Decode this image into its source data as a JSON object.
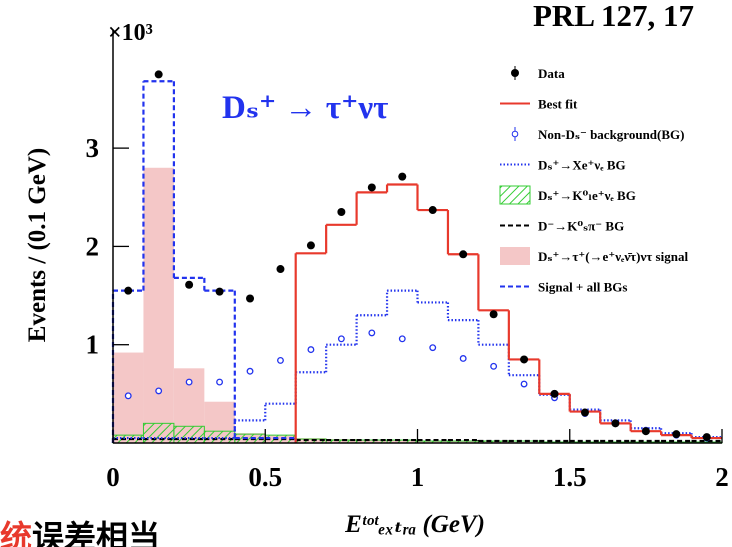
{
  "chart_data": {
    "type": "histogram",
    "title": "PRL 127, 17",
    "annotation": "Dₛ⁺ → τ⁺ντ",
    "y_multiplier": "×10³",
    "xlabel": "Eᵗᵒᵗₑₓₜᵣₐ (GeV)",
    "ylabel": "Events / (0.1 GeV)",
    "caption": [
      "统",
      "误差相当"
    ],
    "xlim": [
      0,
      2
    ],
    "ylim": [
      0,
      4.1
    ],
    "xticks": [
      0,
      0.5,
      1,
      1.5,
      2
    ],
    "yticks": [
      1,
      2,
      3
    ],
    "bins": [
      0,
      0.1,
      0.2,
      0.3,
      0.4,
      0.5,
      0.6,
      0.7,
      0.8,
      0.9,
      1.0,
      1.1,
      1.2,
      1.3,
      1.4,
      1.5,
      1.6,
      1.7,
      1.8,
      1.9,
      2.0
    ],
    "series": [
      {
        "name": "Dₛ⁺→τ⁺(→e⁺νₑν̄τ)ντ signal",
        "style": "filled",
        "color": "#f4c7c7",
        "values": [
          0.92,
          2.8,
          0.76,
          0.42,
          0.1,
          0.08,
          0.05,
          0.04,
          0.03,
          0.03,
          0.02,
          0.02,
          0.02,
          0.01,
          0.01,
          0.01,
          0.01,
          0.01,
          0.01,
          0.01
        ]
      },
      {
        "name": "Dₛ⁺→K⁰ₗe⁺νₑ BG",
        "style": "hatched",
        "color": "#33cc33",
        "values": [
          0.08,
          0.2,
          0.17,
          0.12,
          0.09,
          0.08,
          0.04,
          0.03,
          0.03,
          0.03,
          0.02,
          0.02,
          0.02,
          0.02,
          0.01,
          0.01,
          0.01,
          0.01,
          0.01,
          0.01
        ]
      },
      {
        "name": "D⁻→K⁰ₛπ⁻ BG",
        "style": "dashed",
        "color": "#000000",
        "values": [
          0.04,
          0.04,
          0.04,
          0.04,
          0.04,
          0.04,
          0.03,
          0.03,
          0.03,
          0.03,
          0.03,
          0.03,
          0.02,
          0.02,
          0.02,
          0.02,
          0.02,
          0.02,
          0.02,
          0.02
        ]
      },
      {
        "name": "Dₛ⁺→Xe⁺νₑ BG",
        "style": "dotted",
        "color": "#2233ee",
        "values": [
          0.05,
          0.05,
          0.05,
          0.05,
          0.23,
          0.4,
          0.72,
          1.0,
          1.3,
          1.55,
          1.43,
          1.25,
          1.0,
          0.69,
          0.49,
          0.34,
          0.23,
          0.15,
          0.1,
          0.06
        ]
      },
      {
        "name": "Signal + all BGs",
        "style": "dashed",
        "color": "#2233ee",
        "values": [
          1.55,
          3.68,
          1.68,
          1.55,
          0.05,
          0.05,
          null,
          null,
          null,
          null,
          null,
          null,
          null,
          null,
          null,
          null,
          null,
          null,
          null,
          null
        ]
      },
      {
        "name": "Best fit",
        "style": "step",
        "color": "#e8392c",
        "values": [
          null,
          null,
          null,
          null,
          null,
          null,
          1.93,
          2.22,
          2.55,
          2.63,
          2.37,
          1.92,
          1.35,
          0.85,
          0.5,
          0.32,
          0.2,
          0.12,
          0.08,
          0.05
        ]
      },
      {
        "name": "Non-Dₛ⁻ background(BG)",
        "style": "open-points",
        "color": "#2233ee",
        "values": [
          0.48,
          0.53,
          0.62,
          0.62,
          0.73,
          0.84,
          0.95,
          1.06,
          1.12,
          1.06,
          0.97,
          0.86,
          0.78,
          0.6,
          0.46,
          0.3,
          0.2,
          0.13,
          0.08,
          0.05
        ]
      },
      {
        "name": "Data",
        "style": "points",
        "color": "#000000",
        "values": [
          1.55,
          3.75,
          1.61,
          1.54,
          1.47,
          1.77,
          2.01,
          2.35,
          2.6,
          2.71,
          2.37,
          1.92,
          1.31,
          0.85,
          0.5,
          0.31,
          0.2,
          0.12,
          0.09,
          0.06
        ]
      }
    ],
    "legend_order": [
      7,
      5,
      6,
      3,
      1,
      2,
      0,
      4
    ],
    "legend": "upper right"
  }
}
